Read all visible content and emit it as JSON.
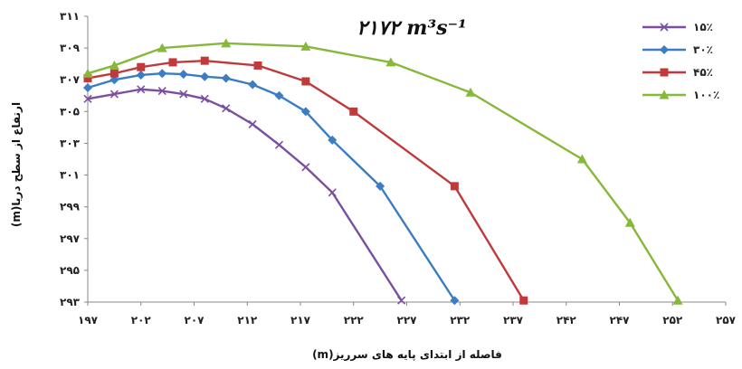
{
  "chart_data": {
    "type": "line",
    "title": "۲۱۷۲ m³s⁻¹",
    "xlabel": "فاصله از ابتدای پایه های سرریز(m)",
    "ylabel": "ارتفاع از سطح دریا(m)",
    "xlim": [
      197,
      257
    ],
    "ylim": [
      293,
      311
    ],
    "x_ticks": [
      {
        "value": 197,
        "label": "۱۹۷"
      },
      {
        "value": 202,
        "label": "۲۰۲"
      },
      {
        "value": 207,
        "label": "۲۰۷"
      },
      {
        "value": 212,
        "label": "۲۱۲"
      },
      {
        "value": 217,
        "label": "۲۱۷"
      },
      {
        "value": 222,
        "label": "۲۲۲"
      },
      {
        "value": 227,
        "label": "۲۲۷"
      },
      {
        "value": 232,
        "label": "۲۳۲"
      },
      {
        "value": 237,
        "label": "۲۳۷"
      },
      {
        "value": 242,
        "label": "۲۴۲"
      },
      {
        "value": 247,
        "label": "۲۴۷"
      },
      {
        "value": 252,
        "label": "۲۵۲"
      },
      {
        "value": 257,
        "label": "۲۵۷"
      }
    ],
    "y_ticks": [
      {
        "value": 293,
        "label": "۲۹۳"
      },
      {
        "value": 295,
        "label": "۲۹۵"
      },
      {
        "value": 297,
        "label": "۲۹۷"
      },
      {
        "value": 299,
        "label": "۲۹۹"
      },
      {
        "value": 301,
        "label": "۳۰۱"
      },
      {
        "value": 303,
        "label": "۳۰۳"
      },
      {
        "value": 305,
        "label": "۳۰۵"
      },
      {
        "value": 307,
        "label": "۳۰۷"
      },
      {
        "value": 309,
        "label": "۳۰۹"
      },
      {
        "value": 311,
        "label": "۳۱۱"
      }
    ],
    "grid": false,
    "legend_position": "top-right",
    "series": [
      {
        "name": "۱۵٪",
        "color": "#7b4fa0",
        "marker": "x",
        "x": [
          197,
          199.5,
          202,
          204,
          206,
          208,
          210,
          212.5,
          215,
          217.5,
          220,
          226.5
        ],
        "y": [
          305.8,
          306.1,
          306.4,
          306.3,
          306.1,
          305.8,
          305.2,
          304.2,
          302.9,
          301.5,
          299.9,
          293.1
        ]
      },
      {
        "name": "۳۰٪",
        "color": "#3b7cc4",
        "marker": "diamond",
        "x": [
          197,
          199.5,
          202,
          204,
          206,
          208,
          210,
          212.5,
          215,
          217.5,
          220,
          224.5,
          231.5
        ],
        "y": [
          306.5,
          307.0,
          307.3,
          307.4,
          307.35,
          307.2,
          307.1,
          306.7,
          306.0,
          305.0,
          303.2,
          300.3,
          293.1
        ]
      },
      {
        "name": "۴۵٪",
        "color": "#c0393b",
        "marker": "square",
        "x": [
          197,
          199.5,
          202,
          205,
          208,
          213,
          217.5,
          222,
          231.5,
          238
        ],
        "y": [
          307.1,
          307.4,
          307.8,
          308.1,
          308.2,
          307.9,
          306.9,
          305.0,
          300.3,
          293.1
        ]
      },
      {
        "name": "۱۰۰٪",
        "color": "#86b83a",
        "marker": "triangle",
        "x": [
          197,
          199.5,
          204,
          210,
          217.5,
          225.5,
          233,
          243.5,
          248,
          252.5
        ],
        "y": [
          307.4,
          307.9,
          309.0,
          309.3,
          309.1,
          308.1,
          306.2,
          302.0,
          298.0,
          293.1
        ]
      }
    ]
  }
}
